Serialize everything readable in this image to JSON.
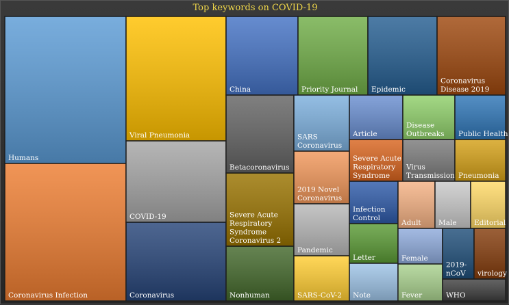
{
  "chart_data": {
    "type": "treemap",
    "title": "Top keywords on COVID-19",
    "items": [
      {
        "name": "Humans",
        "label_lines": [
          "Humans"
        ],
        "value": 100,
        "color": "#5b9bd5"
      },
      {
        "name": "Coronavirus Infection",
        "label_lines": [
          "Coronavirus Infection"
        ],
        "value": 90,
        "color": "#ed7d31"
      },
      {
        "name": "Viral Pneumonia",
        "label_lines": [
          "Viral Pneumonia"
        ],
        "value": 54,
        "color": "#ffc000"
      },
      {
        "name": "COVID-19",
        "label_lines": [
          "COVID-19"
        ],
        "value": 49,
        "color": "#a5a5a5"
      },
      {
        "name": "Coronavirus",
        "label_lines": [
          "Coronavirus"
        ],
        "value": 47,
        "color": "#264478"
      },
      {
        "name": "China",
        "label_lines": [
          "China"
        ],
        "value": 23,
        "color": "#4472c4"
      },
      {
        "name": "Priority Journal",
        "label_lines": [
          "Priority Journal"
        ],
        "value": 22,
        "color": "#70ad47"
      },
      {
        "name": "Epidemic",
        "label_lines": [
          "Epidemic"
        ],
        "value": 21,
        "color": "#255e91"
      },
      {
        "name": "Coronavirus Disease 2019",
        "label_lines": [
          "Coronavirus",
          "Disease 2019"
        ],
        "value": 21,
        "color": "#9e480e"
      },
      {
        "name": "Betacoronavirus",
        "label_lines": [
          "Betacoronavirus"
        ],
        "value": 18,
        "color": "#636363"
      },
      {
        "name": "Severe Acute Respiratory Syndrome Coronavirus 2",
        "label_lines": [
          "Severe Acute",
          "Respiratory",
          "Syndrome",
          "Coronavirus 2"
        ],
        "value": 17,
        "color": "#997300"
      },
      {
        "name": "Nonhuman",
        "label_lines": [
          "Nonhuman"
        ],
        "value": 13,
        "color": "#43682b"
      },
      {
        "name": "SARS Coronavirus",
        "label_lines": [
          "SARS",
          "Coronavirus"
        ],
        "value": 12,
        "color": "#7cafdd"
      },
      {
        "name": "2019 Novel Coronavirus",
        "label_lines": [
          "2019 Novel",
          "Coronavirus"
        ],
        "value": 12,
        "color": "#f1975a"
      },
      {
        "name": "Pandemic",
        "label_lines": [
          "Pandemic"
        ],
        "value": 11,
        "color": "#b7b7b7"
      },
      {
        "name": "SARS-CoV-2",
        "label_lines": [
          "SARS-CoV-2"
        ],
        "value": 10,
        "color": "#ffcd33"
      },
      {
        "name": "Article",
        "label_lines": [
          "Article"
        ],
        "value": 10,
        "color": "#698ed0"
      },
      {
        "name": "Severe Acute Respiratory Syndrome",
        "label_lines": [
          "Severe Acute",
          "Respiratory",
          "Syndrome"
        ],
        "value": 9,
        "color": "#d8641e"
      },
      {
        "name": "Infection Control",
        "label_lines": [
          "Infection",
          "Control"
        ],
        "value": 9,
        "color": "#2e5aa8"
      },
      {
        "name": "Letter",
        "label_lines": [
          "Letter"
        ],
        "value": 8,
        "color": "#5a9a35"
      },
      {
        "name": "Note",
        "label_lines": [
          "Note"
        ],
        "value": 7,
        "color": "#9dc3e6"
      },
      {
        "name": "Disease Outbreaks",
        "label_lines": [
          "Disease",
          "Outbreaks"
        ],
        "value": 9,
        "color": "#8fcf6a"
      },
      {
        "name": "Public Health",
        "label_lines": [
          "Public Health"
        ],
        "value": 9,
        "color": "#2e75b6"
      },
      {
        "name": "Virus Transmission",
        "label_lines": [
          "Virus",
          "Transmission"
        ],
        "value": 8,
        "color": "#7a7a7a"
      },
      {
        "name": "Pneumonia",
        "label_lines": [
          "Pneumonia"
        ],
        "value": 8,
        "color": "#d4a017"
      },
      {
        "name": "Adult",
        "label_lines": [
          "Adult"
        ],
        "value": 7,
        "color": "#f4b183"
      },
      {
        "name": "Male",
        "label_lines": [
          "Male"
        ],
        "value": 7,
        "color": "#c9c9c9"
      },
      {
        "name": "Editorial",
        "label_lines": [
          "Editorial"
        ],
        "value": 7,
        "color": "#ffd966"
      },
      {
        "name": "Female",
        "label_lines": [
          "Female"
        ],
        "value": 6,
        "color": "#8eaadb"
      },
      {
        "name": "Fever",
        "label_lines": [
          "Fever"
        ],
        "value": 5,
        "color": "#a9d18e"
      },
      {
        "name": "2019-nCoV",
        "label_lines": [
          "2019-",
          "nCoV"
        ],
        "value": 5,
        "color": "#1f4e79"
      },
      {
        "name": "virology",
        "label_lines": [
          "virology"
        ],
        "value": 5,
        "color": "#843c0c"
      },
      {
        "name": "WHO",
        "label_lines": [
          "WHO"
        ],
        "value": 4,
        "color": "#404040"
      }
    ]
  }
}
